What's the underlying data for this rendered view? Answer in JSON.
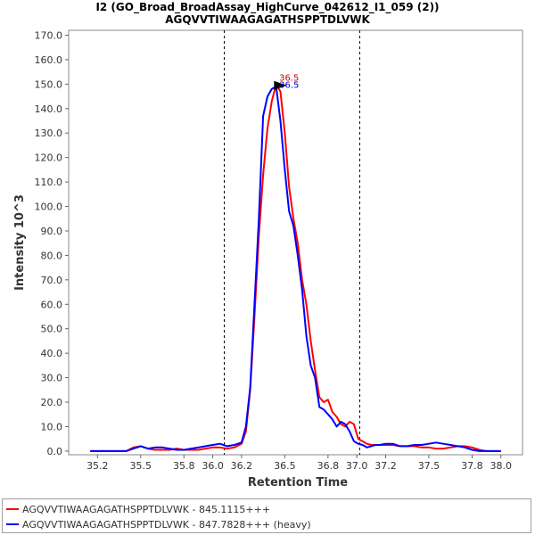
{
  "chart_data": {
    "type": "line",
    "title": "I2 (GO_Broad_BroadAssay_HighCurve_042612_I1_059 (2))",
    "subtitle": "AGQVVTIWAAGAGATHSPPTDLVWK",
    "xlabel": "Retention Time",
    "ylabel": "Intensity 10^3",
    "xlim": [
      35.0,
      38.15
    ],
    "ylim": [
      -1.5,
      172.0
    ],
    "x_ticks": [
      35.2,
      35.5,
      35.8,
      36.0,
      36.2,
      36.5,
      36.8,
      37.0,
      37.2,
      37.5,
      37.8,
      38.0
    ],
    "y_ticks": [
      0.0,
      10.0,
      20.0,
      30.0,
      40.0,
      50.0,
      60.0,
      70.0,
      80.0,
      90.0,
      100.0,
      110.0,
      120.0,
      130.0,
      140.0,
      150.0,
      160.0,
      170.0
    ],
    "vlines": [
      36.08,
      37.02
    ],
    "peak_marker": {
      "x": 36.5,
      "y": 149.5
    },
    "peak_labels": [
      {
        "text": "36.5",
        "x": 36.53,
        "y": 150.0,
        "color": "#cc0000"
      },
      {
        "text": "36.5",
        "x": 36.53,
        "y": 148.5,
        "color": "#0000cc"
      }
    ],
    "series": [
      {
        "name": "AGQVVTIWAAGAGATHSPPTDLVWK - 845.1115+++",
        "color": "#ff0000",
        "x": [
          35.15,
          35.2,
          35.25,
          35.3,
          35.35,
          35.4,
          35.45,
          35.5,
          35.55,
          35.6,
          35.65,
          35.7,
          35.75,
          35.8,
          35.85,
          35.9,
          35.95,
          36.0,
          36.05,
          36.1,
          36.15,
          36.2,
          36.23,
          36.26,
          36.29,
          36.32,
          36.35,
          36.38,
          36.41,
          36.44,
          36.47,
          36.5,
          36.53,
          36.56,
          36.59,
          36.62,
          36.65,
          36.68,
          36.71,
          36.74,
          36.77,
          36.8,
          36.83,
          36.86,
          36.89,
          36.92,
          36.95,
          36.98,
          37.01,
          37.04,
          37.07,
          37.1,
          37.13,
          37.16,
          37.2,
          37.25,
          37.3,
          37.35,
          37.4,
          37.45,
          37.5,
          37.55,
          37.6,
          37.65,
          37.7,
          37.75,
          37.8,
          37.85,
          37.9,
          37.95,
          38.0
        ],
        "values": [
          0.0,
          0.0,
          0.0,
          0.0,
          0.0,
          0.0,
          1.5,
          2.0,
          1.0,
          0.5,
          0.5,
          0.5,
          1.0,
          0.5,
          0.5,
          0.5,
          1.0,
          1.5,
          1.5,
          1.0,
          1.5,
          3.0,
          8.0,
          25.0,
          55.0,
          88.0,
          113.0,
          132.0,
          143.0,
          150.0,
          147.0,
          130.0,
          108.0,
          95.0,
          85.0,
          70.0,
          60.0,
          45.0,
          33.0,
          22.0,
          20.0,
          21.0,
          16.0,
          14.0,
          11.0,
          10.0,
          12.0,
          11.0,
          5.0,
          4.0,
          3.0,
          2.5,
          2.5,
          2.5,
          2.5,
          2.5,
          2.0,
          2.0,
          2.0,
          1.5,
          1.5,
          1.0,
          1.0,
          1.5,
          2.0,
          2.0,
          1.5,
          0.5,
          0.0,
          0.0,
          0.0
        ]
      },
      {
        "name": "AGQVVTIWAAGAGATHSPPTDLVWK - 847.7828+++ (heavy)",
        "color": "#0000ff",
        "x": [
          35.15,
          35.2,
          35.25,
          35.3,
          35.35,
          35.4,
          35.45,
          35.5,
          35.55,
          35.6,
          35.65,
          35.7,
          35.75,
          35.8,
          35.85,
          35.9,
          35.95,
          36.0,
          36.05,
          36.1,
          36.15,
          36.2,
          36.23,
          36.26,
          36.29,
          36.32,
          36.35,
          36.38,
          36.41,
          36.44,
          36.47,
          36.5,
          36.53,
          36.56,
          36.59,
          36.62,
          36.65,
          36.68,
          36.71,
          36.74,
          36.77,
          36.8,
          36.83,
          36.86,
          36.89,
          36.92,
          36.95,
          36.98,
          37.01,
          37.04,
          37.07,
          37.1,
          37.13,
          37.16,
          37.2,
          37.25,
          37.3,
          37.35,
          37.4,
          37.45,
          37.5,
          37.55,
          37.6,
          37.65,
          37.7,
          37.75,
          37.8,
          37.85,
          37.9,
          37.95,
          38.0
        ],
        "values": [
          0.0,
          0.0,
          0.0,
          0.0,
          0.0,
          0.0,
          1.0,
          2.0,
          1.0,
          1.5,
          1.5,
          1.0,
          0.5,
          0.5,
          1.0,
          1.5,
          2.0,
          2.5,
          3.0,
          2.0,
          2.5,
          3.5,
          10.0,
          26.0,
          60.0,
          95.0,
          137.0,
          145.0,
          148.0,
          149.0,
          135.0,
          115.0,
          98.0,
          92.0,
          80.0,
          66.0,
          47.0,
          35.0,
          30.0,
          18.0,
          17.0,
          15.0,
          13.0,
          10.0,
          12.0,
          11.0,
          8.0,
          4.0,
          3.0,
          2.5,
          1.5,
          2.0,
          2.5,
          2.5,
          3.0,
          3.0,
          2.0,
          2.0,
          2.5,
          2.5,
          3.0,
          3.5,
          3.0,
          2.5,
          2.0,
          1.5,
          0.5,
          0.0,
          0.0,
          0.0,
          0.0
        ]
      }
    ]
  }
}
